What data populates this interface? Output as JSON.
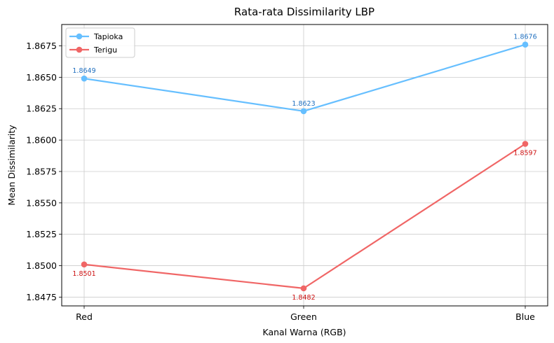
{
  "chart_data": {
    "type": "line",
    "title": "Rata-rata Dissimilarity LBP",
    "xlabel": "Kanal Warna (RGB)",
    "ylabel": "Mean Dissimilarity",
    "categories": [
      "Red",
      "Green",
      "Blue"
    ],
    "ylim": [
      1.8468,
      1.8692
    ],
    "yticks": [
      1.8475,
      1.85,
      1.8525,
      1.855,
      1.8575,
      1.86,
      1.8625,
      1.865,
      1.8675
    ],
    "ytick_labels": [
      "1.8475",
      "1.8500",
      "1.8525",
      "1.8550",
      "1.8575",
      "1.8600",
      "1.8625",
      "1.8650",
      "1.8675"
    ],
    "grid": true,
    "legend": "top-left",
    "series": [
      {
        "name": "Tapioka",
        "values": [
          1.8649,
          1.8623,
          1.8676
        ],
        "labels": [
          "1.8649",
          "1.8623",
          "1.8676"
        ],
        "color": "#66bfff",
        "label_color": "#1f6fbf",
        "label_position": "above"
      },
      {
        "name": "Terigu",
        "values": [
          1.8501,
          1.8482,
          1.8597
        ],
        "labels": [
          "1.8501",
          "1.8482",
          "1.8597"
        ],
        "color": "#f06666",
        "label_color": "#cc1111",
        "label_position": "below"
      }
    ]
  }
}
